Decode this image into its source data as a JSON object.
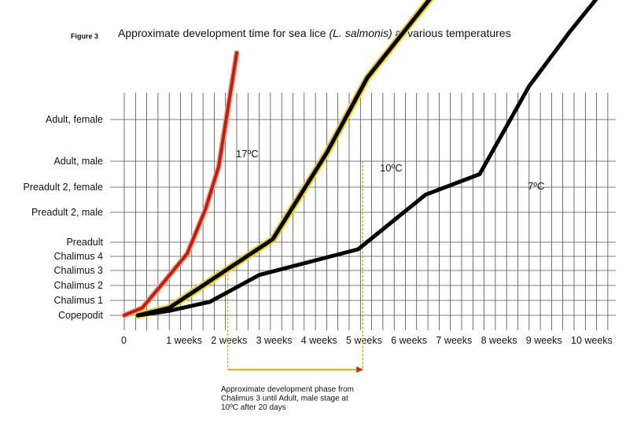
{
  "figure_tag": "Figure 3",
  "title": {
    "prefix": "Approximate development time for sea lice ",
    "species": "(L. salmonis)",
    "suffix": " at various temperatures"
  },
  "annotation": {
    "lines": [
      "Approximate development phase from",
      "Chalimus 3 until Adult, male stage at",
      "10ºC after 20 days"
    ],
    "from_weeks": 2.3,
    "to_weeks": 5.3,
    "arrow_color": "#e8b400",
    "arrowhead_color": "#d42a0c"
  },
  "chart_data": {
    "type": "line",
    "title": "Approximate development time for sea lice (L. salmonis) at various temperatures",
    "xlabel": "",
    "ylabel": "",
    "xlim": [
      0,
      10.7
    ],
    "grid": true,
    "x_ticks": [
      {
        "value": 0,
        "label": "0"
      },
      {
        "value": 1,
        "label": "1 weeks"
      },
      {
        "value": 2,
        "label": "2 weeks"
      },
      {
        "value": 3,
        "label": "3 weeks"
      },
      {
        "value": 4,
        "label": "4 weeks"
      },
      {
        "value": 5,
        "label": "5 weeks"
      },
      {
        "value": 6,
        "label": "6 weeks"
      },
      {
        "value": 7,
        "label": "7 weeks"
      },
      {
        "value": 8,
        "label": "8 weeks"
      },
      {
        "value": 9,
        "label": "9 weeks"
      },
      {
        "value": 10,
        "label": "10 weeks"
      }
    ],
    "stages": [
      "Copepodit",
      "Chalimus 1",
      "Chalimus 2",
      "Chalimus 3",
      "Chalimus 4",
      "Preadult",
      "Preadult 2, male",
      "Preadult 2, female",
      "Adult, male",
      "Adult, female"
    ],
    "series": [
      {
        "name": "17ºC",
        "color": "#cc1a0a",
        "style": "red",
        "points": [
          [
            0,
            0
          ],
          [
            0.4,
            0.5
          ],
          [
            0.9,
            2.3
          ],
          [
            1.4,
            4.2
          ],
          [
            1.8,
            6.1
          ],
          [
            2.1,
            7.8
          ],
          [
            2.5,
            10.6
          ]
        ]
      },
      {
        "name": "10ºC",
        "color": "#000000",
        "style": "glow",
        "points": [
          [
            0.3,
            0
          ],
          [
            1.0,
            0.5
          ],
          [
            1.9,
            2.3
          ],
          [
            3.3,
            5.1
          ],
          [
            4.5,
            8.2
          ],
          [
            5.4,
            10.0
          ],
          [
            6.8,
            11.9
          ]
        ]
      },
      {
        "name": "7ºC",
        "color": "#000000",
        "style": "black",
        "points": [
          [
            0.3,
            0
          ],
          [
            1.0,
            0.3
          ],
          [
            1.9,
            0.9
          ],
          [
            3.0,
            2.7
          ],
          [
            5.2,
            4.5
          ],
          [
            6.7,
            6.7
          ],
          [
            7.9,
            7.5
          ],
          [
            9.0,
            9.8
          ],
          [
            9.9,
            11.1
          ],
          [
            10.8,
            12.3
          ]
        ]
      }
    ]
  }
}
